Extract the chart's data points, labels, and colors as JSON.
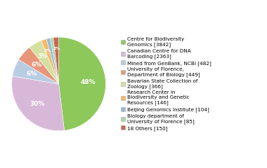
{
  "labels": [
    "Centre for Biodiversity\nGenomics [3842]",
    "Canadian Centre for DNA\nBarcoding [2363]",
    "Mined from GenBank, NCBI [482]",
    "University of Florence,\nDepartment of Biology [449]",
    "Bavarian State Collection of\nZoology [366]",
    "Research Center in\nBiodiversity and Genetic\nResources [146]",
    "Beijing Genomics Institute [104]",
    "Biology department of\nUniversity of Florence [85]",
    "18 Others [150]"
  ],
  "values": [
    3842,
    2363,
    482,
    449,
    366,
    146,
    104,
    85,
    150
  ],
  "colors": [
    "#8dc85a",
    "#d8b8d8",
    "#b8cce4",
    "#e8967a",
    "#d4e0a0",
    "#f4b96a",
    "#9ab8d8",
    "#a8d8a8",
    "#cc6655"
  ],
  "bg_color": "#ffffff"
}
